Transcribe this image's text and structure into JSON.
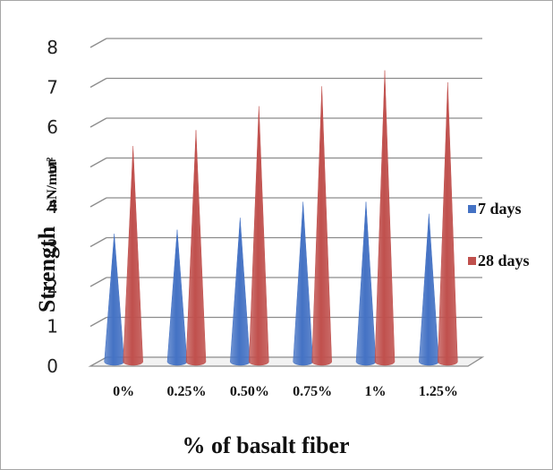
{
  "chart_data": {
    "type": "bar",
    "bar_shape": "cone",
    "categories": [
      "0%",
      "0.25%",
      "0.50%",
      "0.75%",
      "1%",
      "1.25%"
    ],
    "series": [
      {
        "name": "7 days",
        "values": [
          3.1,
          3.2,
          3.5,
          3.9,
          3.9,
          3.6
        ],
        "color": "#4472c4"
      },
      {
        "name": "28 days",
        "values": [
          5.3,
          5.7,
          6.3,
          6.8,
          7.2,
          6.9
        ],
        "color": "#c0504d"
      }
    ],
    "xlabel": "% of basalt fiber",
    "ylabel": "Strength",
    "ylabel_unit": "inN/mm²",
    "ylim": [
      0,
      8
    ],
    "yticks": [
      0,
      1,
      2,
      3,
      4,
      5,
      6,
      7,
      8
    ],
    "grid": true,
    "legend": "right"
  }
}
